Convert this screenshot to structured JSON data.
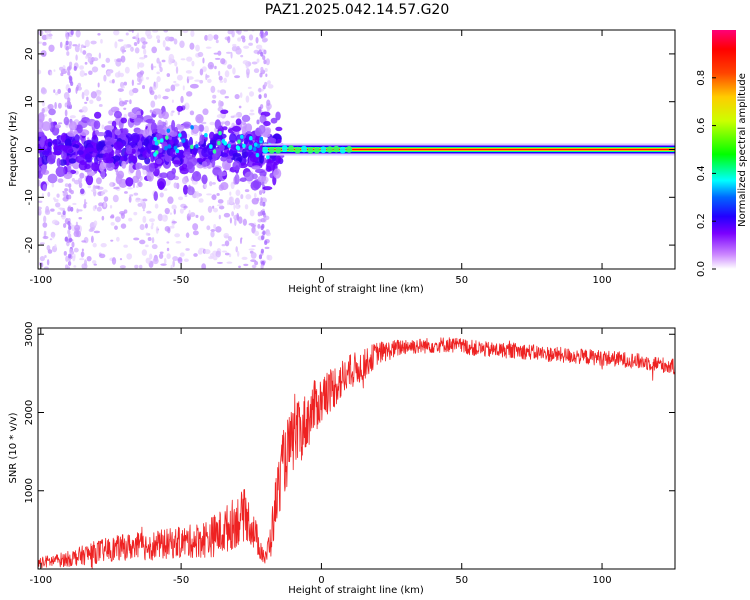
{
  "title": "PAZ1.2025.042.14.57.G20",
  "chart_data": [
    {
      "type": "heatmap",
      "xlabel": "Height of straight line (km)",
      "ylabel": "Frequency (Hz)",
      "xlim": [
        -101,
        126
      ],
      "ylim": [
        -25,
        25
      ],
      "xticks": [
        -100,
        -50,
        0,
        50,
        100
      ],
      "yticks": [
        -20,
        -10,
        0,
        10,
        20
      ],
      "xtick_labels": [
        "-100",
        "-50",
        "0",
        "50",
        "100"
      ],
      "ytick_labels": [
        "-20",
        "-10",
        "0",
        "10",
        "20"
      ],
      "colorbar": {
        "label": "Normalized spectral amplitude",
        "range": [
          0,
          1
        ],
        "ticks": [
          0.0,
          0.2,
          0.4,
          0.6,
          0.8
        ],
        "tick_labels": [
          "0.0",
          "0.2",
          "0.4",
          "0.6",
          "0.8"
        ],
        "colors": [
          "#ffffff",
          "#cc88ff",
          "#5500ff",
          "#0033ff",
          "#00ffff",
          "#00ff00",
          "#ffff00",
          "#ff8800",
          "#ff0000",
          "#ff0077"
        ]
      },
      "ridge": {
        "frequency": 0,
        "start": -21,
        "end": 126,
        "description_colors": [
          "#ff0000",
          "#ffff00",
          "#00ff00",
          "#00ffff",
          "#5500ff"
        ]
      },
      "scatter_region": {
        "x_range": [
          -101,
          -18
        ],
        "core_frequency_spread": 5,
        "max_frequency_spread": 25
      },
      "artifact_x": [
        -21,
        -90
      ]
    },
    {
      "type": "line",
      "xlabel": "Height of straight line (km)",
      "ylabel": "SNR (10 * v/v)",
      "xlim": [
        -101,
        126
      ],
      "ylim": [
        0,
        3080
      ],
      "xticks": [
        -100,
        -50,
        0,
        50,
        100
      ],
      "yticks": [
        1000,
        2000,
        3000
      ],
      "xtick_labels": [
        "-100",
        "-50",
        "0",
        "50",
        "100"
      ],
      "ytick_labels": [
        "1000",
        "2000",
        "3000"
      ],
      "series": [
        {
          "color": "#ee2222",
          "x": [
            -101,
            -90,
            -80,
            -70,
            -60,
            -50,
            -45,
            -40,
            -35,
            -30,
            -27,
            -25,
            -22,
            -20,
            -18,
            -16,
            -14,
            -12,
            -10,
            -8,
            -5,
            -2,
            0,
            2,
            5,
            8,
            10,
            12,
            15,
            18,
            20,
            23,
            25,
            28,
            30,
            35,
            40,
            45,
            50,
            55,
            60,
            70,
            80,
            90,
            100,
            110,
            120,
            126
          ],
          "values": [
            80,
            130,
            220,
            280,
            300,
            340,
            360,
            400,
            480,
            620,
            700,
            550,
            300,
            120,
            400,
            900,
            1300,
            1500,
            1650,
            1750,
            1900,
            2100,
            2150,
            2250,
            2350,
            2450,
            2500,
            2550,
            2600,
            2700,
            2760,
            2780,
            2800,
            2830,
            2850,
            2850,
            2860,
            2870,
            2850,
            2820,
            2800,
            2790,
            2750,
            2720,
            2700,
            2670,
            2620,
            2580
          ],
          "noise": [
            70,
            100,
            150,
            170,
            190,
            200,
            220,
            260,
            300,
            340,
            330,
            260,
            180,
            90,
            260,
            380,
            420,
            440,
            420,
            400,
            380,
            340,
            320,
            300,
            280,
            250,
            240,
            220,
            200,
            170,
            150,
            130,
            120,
            110,
            110,
            100,
            100,
            100,
            100,
            100,
            100,
            100,
            100,
            100,
            100,
            100,
            100,
            100
          ]
        }
      ]
    }
  ]
}
